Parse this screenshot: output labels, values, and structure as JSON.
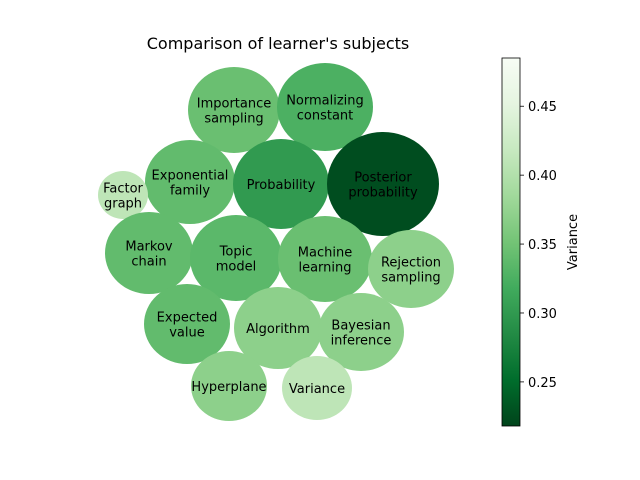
{
  "chart_data": {
    "type": "bubble",
    "title": "Comparison of learner's subjects",
    "colormap": "Greens_r",
    "colorbar": {
      "label": "Variance",
      "range": [
        0.218,
        0.485
      ],
      "ticks": [
        "0.25",
        "0.30",
        "0.35",
        "0.40",
        "0.45"
      ],
      "tick_values": [
        0.25,
        0.3,
        0.35,
        0.4,
        0.45
      ]
    },
    "bubbles": [
      {
        "name": "Importance sampling",
        "lines": [
          "Importance",
          "sampling"
        ],
        "variance": 0.345
      },
      {
        "name": "Normalizing constant",
        "lines": [
          "Normalizing",
          "constant"
        ],
        "variance": 0.325
      },
      {
        "name": "Exponential family",
        "lines": [
          "Exponential",
          "family"
        ],
        "variance": 0.34
      },
      {
        "name": "Probability",
        "lines": [
          "Probability"
        ],
        "variance": 0.3
      },
      {
        "name": "Posterior probability",
        "lines": [
          "Posterior",
          "probability"
        ],
        "variance": 0.225
      },
      {
        "name": "Factor graph",
        "lines": [
          "Factor",
          "graph"
        ],
        "variance": 0.41
      },
      {
        "name": "Markov chain",
        "lines": [
          "Markov",
          "chain"
        ],
        "variance": 0.34
      },
      {
        "name": "Topic model",
        "lines": [
          "Topic",
          "model"
        ],
        "variance": 0.335
      },
      {
        "name": "Machine learning",
        "lines": [
          "Machine",
          "learning"
        ],
        "variance": 0.345
      },
      {
        "name": "Rejection sampling",
        "lines": [
          "Rejection",
          "sampling"
        ],
        "variance": 0.37
      },
      {
        "name": "Expected value",
        "lines": [
          "Expected",
          "value"
        ],
        "variance": 0.34
      },
      {
        "name": "Algorithm",
        "lines": [
          "Algorithm"
        ],
        "variance": 0.37
      },
      {
        "name": "Bayesian inference",
        "lines": [
          "Bayesian",
          "inference"
        ],
        "variance": 0.37
      },
      {
        "name": "Hyperplane",
        "lines": [
          "Hyperplane"
        ],
        "variance": 0.37
      },
      {
        "name": "Variance",
        "lines": [
          "Variance"
        ],
        "variance": 0.41
      }
    ]
  }
}
